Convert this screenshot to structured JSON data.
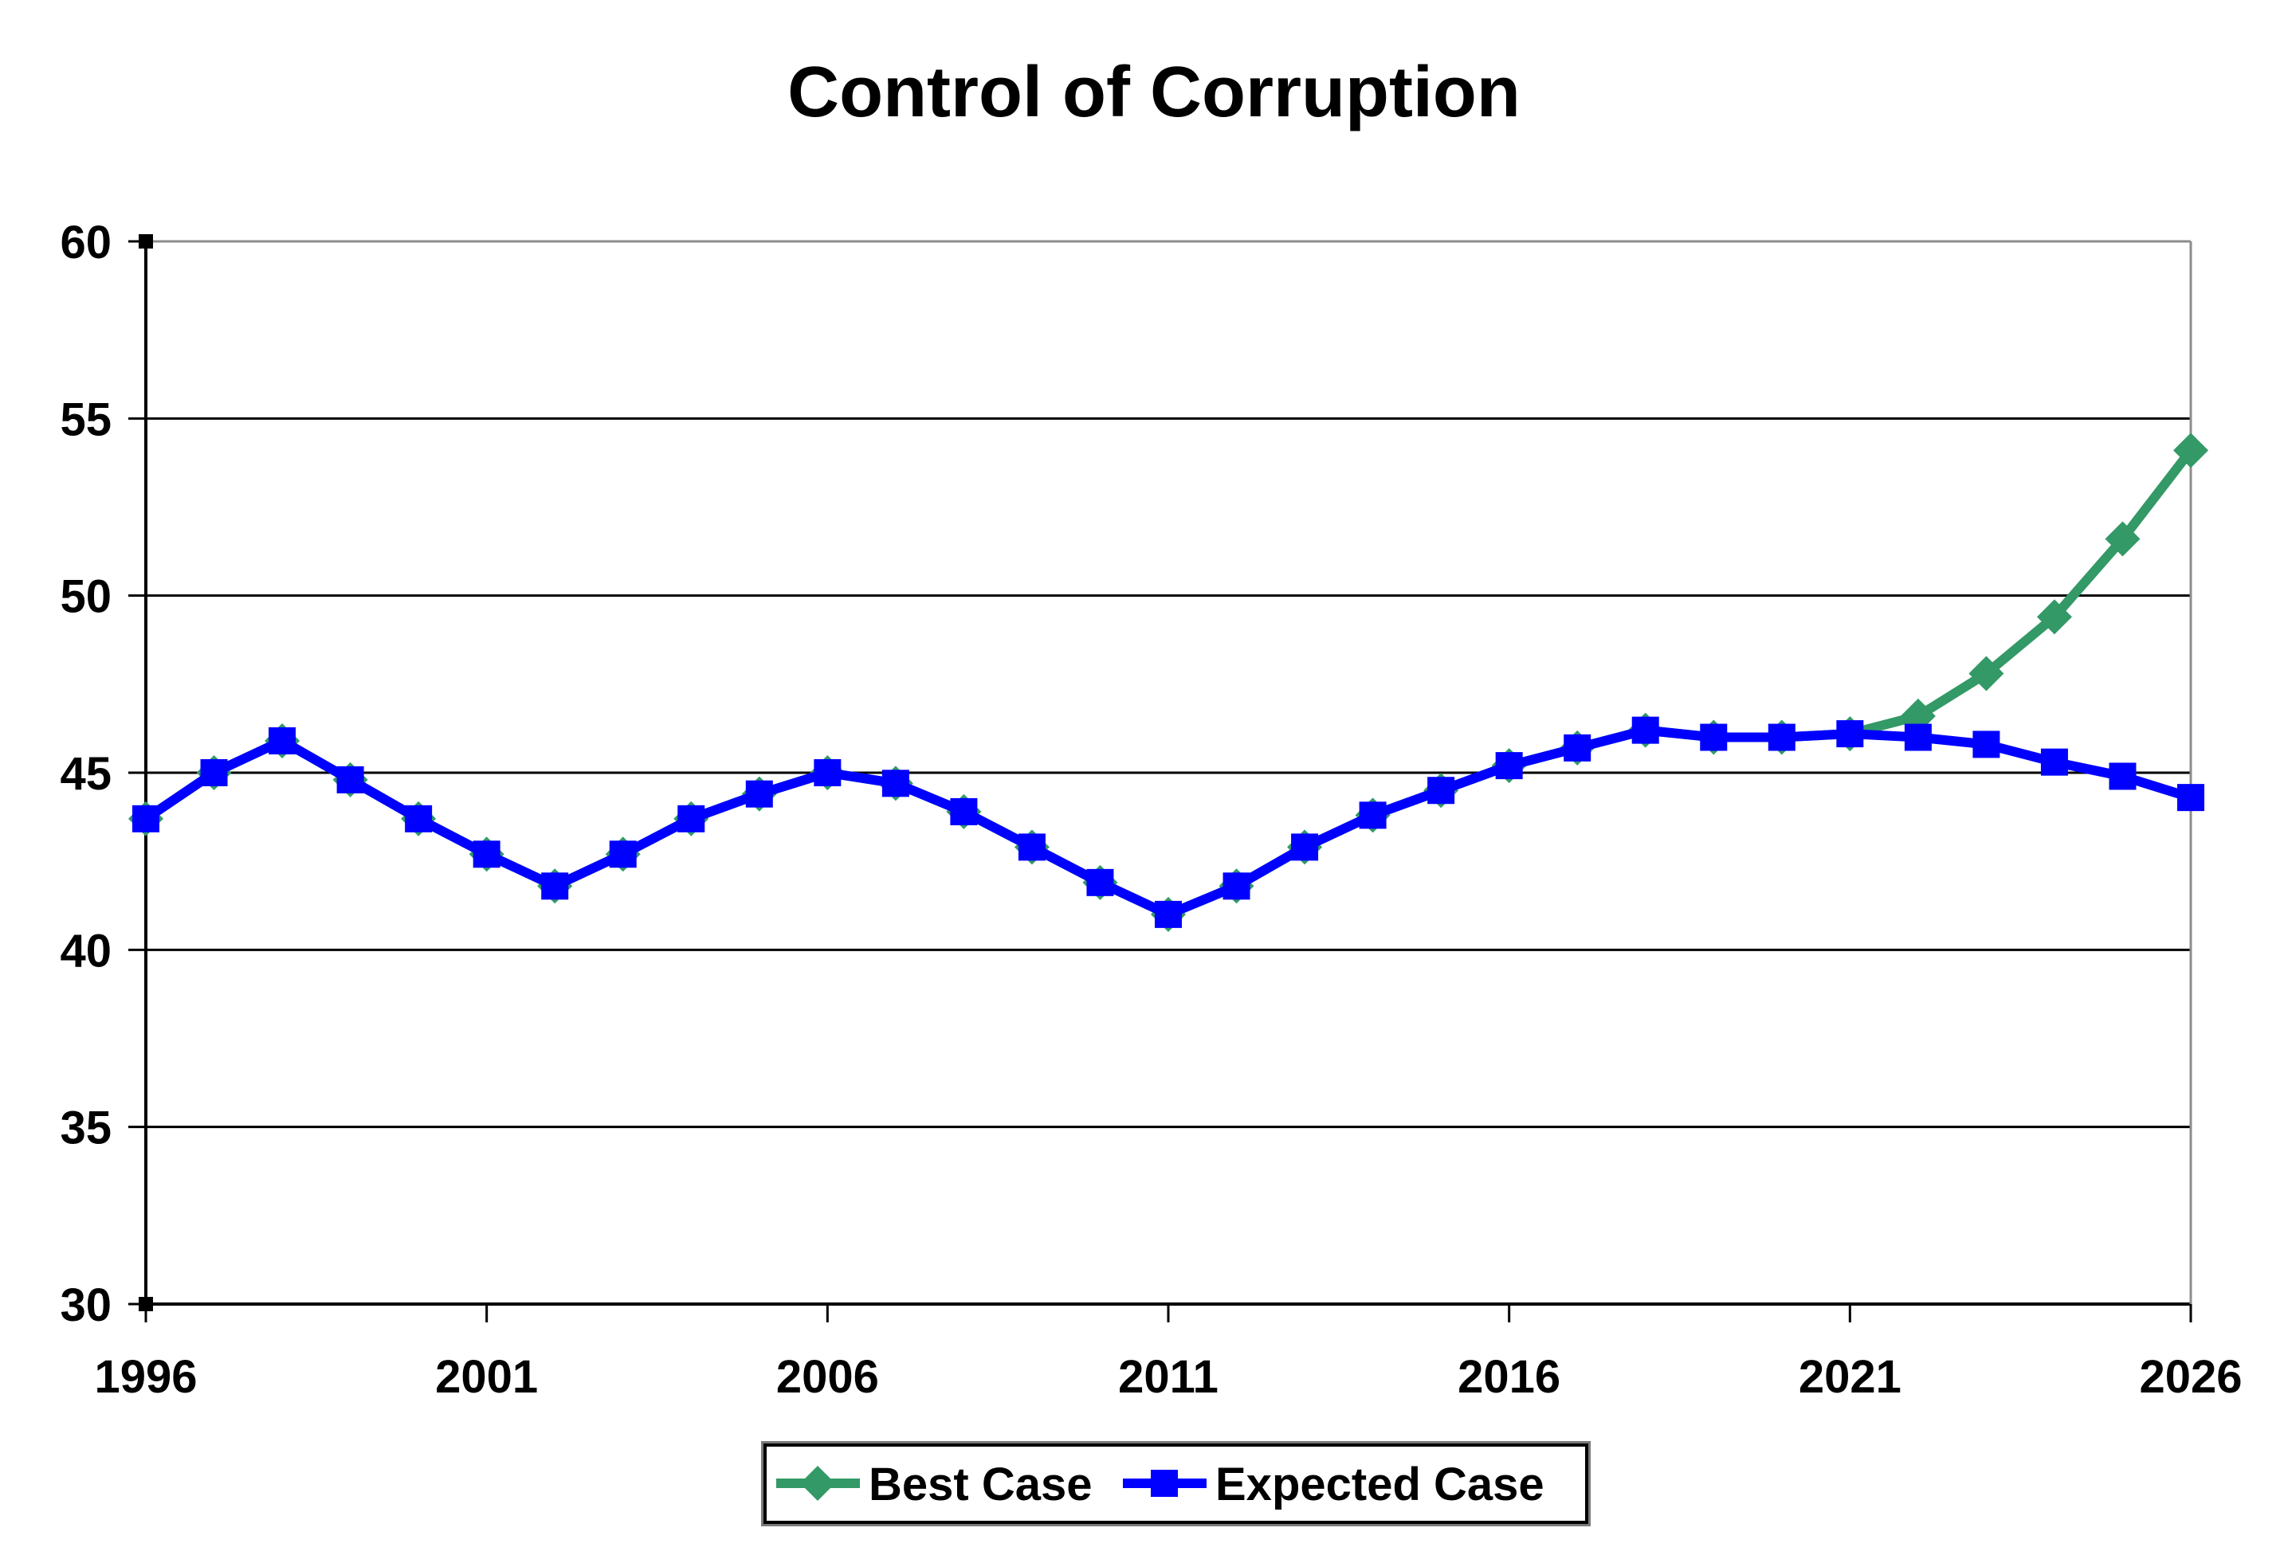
{
  "page": {
    "background": "#ffffff"
  },
  "chart_data": {
    "type": "line",
    "title": "Control of Corruption",
    "xlabel": "",
    "ylabel": "",
    "x": [
      1996,
      1997,
      1998,
      1999,
      2000,
      2001,
      2002,
      2003,
      2004,
      2005,
      2006,
      2007,
      2008,
      2009,
      2010,
      2011,
      2012,
      2013,
      2014,
      2015,
      2016,
      2017,
      2018,
      2019,
      2020,
      2021,
      2022,
      2023,
      2024,
      2025,
      2026
    ],
    "xticks": [
      1996,
      2001,
      2006,
      2011,
      2016,
      2021,
      2026
    ],
    "yticks": [
      30,
      35,
      40,
      45,
      50,
      55,
      60
    ],
    "ylim": [
      30,
      60
    ],
    "xlim": [
      1996,
      2026
    ],
    "grid": "horizontal",
    "legend_position": "bottom-center",
    "series": [
      {
        "name": "Best Case",
        "color": "#339966",
        "marker": "diamond",
        "values": [
          43.7,
          45.0,
          45.9,
          44.8,
          43.7,
          42.7,
          41.8,
          42.7,
          43.7,
          44.4,
          45.0,
          44.7,
          43.9,
          42.9,
          41.9,
          41.0,
          41.8,
          42.9,
          43.8,
          44.5,
          45.2,
          45.7,
          46.2,
          46.0,
          46.0,
          46.1,
          46.6,
          47.8,
          49.4,
          51.6,
          54.1
        ]
      },
      {
        "name": "Expected Case",
        "color": "#0000FF",
        "marker": "square",
        "values": [
          43.7,
          45.0,
          45.9,
          44.8,
          43.7,
          42.7,
          41.8,
          42.7,
          43.7,
          44.4,
          45.0,
          44.7,
          43.9,
          42.9,
          41.9,
          41.0,
          41.8,
          42.9,
          43.8,
          44.5,
          45.2,
          45.7,
          46.2,
          46.0,
          46.0,
          46.1,
          46.0,
          45.8,
          45.3,
          44.9,
          44.3
        ]
      }
    ]
  },
  "legend": {
    "items": [
      {
        "label": "Best Case",
        "color": "#339966",
        "marker": "diamond"
      },
      {
        "label": "Expected Case",
        "color": "#0000FF",
        "marker": "square"
      }
    ]
  },
  "colors": {
    "best_case": "#339966",
    "expected_case": "#0000FF",
    "gridline": "#000000",
    "chart_border_gray": "#8c8c8c",
    "background": "#ffffff"
  }
}
